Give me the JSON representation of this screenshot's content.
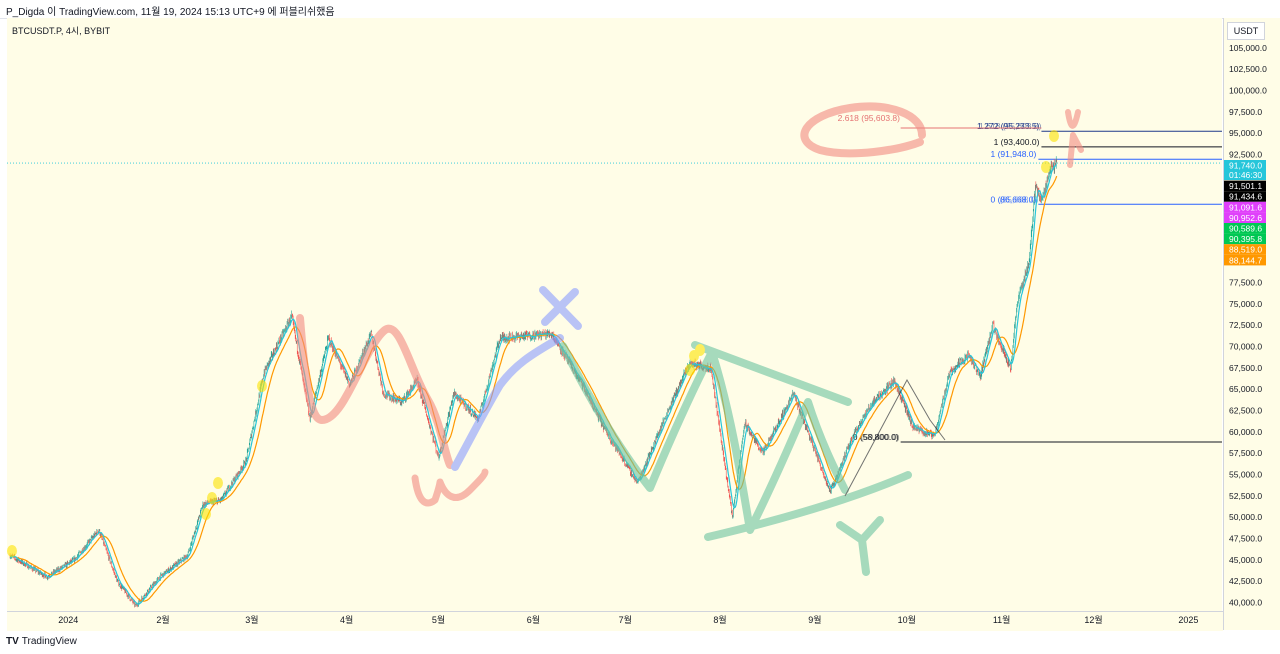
{
  "header": {
    "caption": "P_Digda 이 TradingView.com, 11월 19, 2024 15:13 UTC+9 에 퍼블리쉬했음"
  },
  "symbol_label": "BTCUSDT.P, 4시, BYBIT",
  "unit": "USDT",
  "branding": {
    "logo_glyph": "TV",
    "name": "TradingView"
  },
  "colors": {
    "background": "#fffde7",
    "up": "#26a69a",
    "down": "#ef5350",
    "ma_teal": "#26c6da",
    "ma_orange": "#ff9800",
    "drawing_red": "#f28b82",
    "drawing_blue": "#8c9eff",
    "drawing_green": "#6cc3a0",
    "marker_yellow": "#fde400"
  },
  "chart_data": {
    "type": "candlestick",
    "title": "",
    "y_ticks": [
      105000,
      102500,
      100000,
      97500,
      95000,
      92500,
      90000,
      87500,
      85000,
      82500,
      80000,
      77500,
      75000,
      72500,
      70000,
      67500,
      65000,
      62500,
      60000,
      57500,
      55000,
      52500,
      50000,
      47500,
      45000,
      42500,
      40000
    ],
    "y_tick_labels": [
      "105,000.0",
      "102,500.0",
      "100,000.0",
      "97,500.0",
      "95,000.0",
      "92,500.0",
      "90,000.0",
      "87,500.0",
      "85,000.0",
      "82,500.0",
      "80,000.0",
      "77,500.0",
      "75,000.0",
      "72,500.0",
      "70,000.0",
      "67,500.0",
      "65,000.0",
      "62,500.0",
      "60,000.0",
      "57,500.0",
      "55,000.0",
      "52,500.0",
      "50,000.0",
      "47,500.0",
      "45,000.0",
      "42,500.0",
      "40,000.0"
    ],
    "ylim": [
      39000,
      108500
    ],
    "x_ticks": [
      {
        "label": "2024",
        "date": "2024-01-01"
      },
      {
        "label": "2월",
        "date": "2024-02-01"
      },
      {
        "label": "3월",
        "date": "2024-03-01"
      },
      {
        "label": "4월",
        "date": "2024-04-01"
      },
      {
        "label": "5월",
        "date": "2024-05-01"
      },
      {
        "label": "6월",
        "date": "2024-06-01"
      },
      {
        "label": "7월",
        "date": "2024-07-01"
      },
      {
        "label": "8월",
        "date": "2024-08-01"
      },
      {
        "label": "9월",
        "date": "2024-09-01"
      },
      {
        "label": "10월",
        "date": "2024-10-01"
      },
      {
        "label": "11월",
        "date": "2024-11-01"
      },
      {
        "label": "12월",
        "date": "2024-12-01"
      },
      {
        "label": "2025",
        "date": "2025-01-01"
      }
    ],
    "xlim": [
      "2023-12-12",
      "2025-01-12"
    ],
    "price_path": [
      [
        "2023-12-13",
        45500
      ],
      [
        "2023-12-25",
        43000
      ],
      [
        "2024-01-03",
        45000
      ],
      [
        "2024-01-11",
        48500
      ],
      [
        "2024-01-17",
        42500
      ],
      [
        "2024-01-23",
        39600
      ],
      [
        "2024-01-31",
        43000
      ],
      [
        "2024-02-09",
        45500
      ],
      [
        "2024-02-14",
        51500
      ],
      [
        "2024-02-20",
        52000
      ],
      [
        "2024-02-28",
        56500
      ],
      [
        "2024-03-05",
        67000
      ],
      [
        "2024-03-14",
        73500
      ],
      [
        "2024-03-20",
        61500
      ],
      [
        "2024-03-26",
        71000
      ],
      [
        "2024-04-02",
        65500
      ],
      [
        "2024-04-09",
        71500
      ],
      [
        "2024-04-13",
        64500
      ],
      [
        "2024-04-19",
        63500
      ],
      [
        "2024-04-24",
        66000
      ],
      [
        "2024-05-01",
        57000
      ],
      [
        "2024-05-06",
        64500
      ],
      [
        "2024-05-14",
        61500
      ],
      [
        "2024-05-21",
        71000
      ],
      [
        "2024-06-07",
        71500
      ],
      [
        "2024-06-17",
        65500
      ],
      [
        "2024-06-24",
        60500
      ],
      [
        "2024-07-05",
        54000
      ],
      [
        "2024-07-15",
        62500
      ],
      [
        "2024-07-22",
        68000
      ],
      [
        "2024-07-29",
        67500
      ],
      [
        "2024-08-05",
        50000
      ],
      [
        "2024-08-09",
        61000
      ],
      [
        "2024-08-15",
        57500
      ],
      [
        "2024-08-25",
        64500
      ],
      [
        "2024-09-06",
        53000
      ],
      [
        "2024-09-14",
        60000
      ],
      [
        "2024-09-20",
        63500
      ],
      [
        "2024-09-27",
        66000
      ],
      [
        "2024-10-03",
        60500
      ],
      [
        "2024-10-10",
        59500
      ],
      [
        "2024-10-15",
        67000
      ],
      [
        "2024-10-21",
        69000
      ],
      [
        "2024-10-25",
        66500
      ],
      [
        "2024-10-29",
        72500
      ],
      [
        "2024-11-04",
        67500
      ],
      [
        "2024-11-06",
        75000
      ],
      [
        "2024-11-10",
        80000
      ],
      [
        "2024-11-12",
        89000
      ],
      [
        "2024-11-14",
        87000
      ],
      [
        "2024-11-17",
        91000
      ],
      [
        "2024-11-19",
        91501
      ]
    ],
    "price_badges": [
      {
        "value": 91740,
        "label": "91,740.0",
        "sublabel": "01:46:30",
        "color": "#26c6da",
        "text": "#ffffff"
      },
      {
        "value": 91501.1,
        "label": "91,501.1",
        "color": "#000000",
        "text": "#ffffff"
      },
      {
        "value": 91434.6,
        "label": "91,434.6",
        "color": "#000000",
        "text": "#ffffff"
      },
      {
        "value": 91091.6,
        "label": "91,091.6",
        "color": "#e040fb",
        "text": "#ffffff"
      },
      {
        "value": 90952.6,
        "label": "90,952.6",
        "color": "#e040fb",
        "text": "#ffffff"
      },
      {
        "value": 90589.6,
        "label": "90,589.6",
        "color": "#00c853",
        "text": "#ffffff"
      },
      {
        "value": 90395.8,
        "label": "90,395.8",
        "color": "#00c853",
        "text": "#ffffff"
      },
      {
        "value": 88519.0,
        "label": "88,519.0",
        "color": "#ff9800",
        "text": "#ffffff"
      },
      {
        "value": 88144.7,
        "label": "88,144.7",
        "color": "#ff9800",
        "text": "#ffffff"
      }
    ],
    "fib_levels": [
      {
        "label": "1.272 (95,233.5)",
        "overlap_label": "1.618 (95,603.8)",
        "value": 95233.5,
        "color": "#1e3a8a",
        "from": "2024-11-14",
        "to": "2025-01-12"
      },
      {
        "label": "1 (93,400.0)",
        "value": 93400,
        "color": "#131722",
        "from": "2024-11-14",
        "to": "2025-01-12"
      },
      {
        "label": "1 (91,948.0)",
        "value": 91948,
        "color": "#2962ff",
        "from": "2024-11-13",
        "to": "2025-01-12"
      },
      {
        "label": "0 (86,668.0)",
        "overlap_label": "(85,668.0)",
        "value": 86668,
        "color": "#2962ff",
        "from": "2024-11-13",
        "to": "2025-01-12"
      },
      {
        "label": "2.618 (95,603.8)",
        "value": 95603.8,
        "color": "#e57373",
        "from": "2024-09-29",
        "to": "2024-11-14"
      },
      {
        "label": "0 (58,800.0)",
        "overlap_label": "(59,400.0)",
        "value": 58800,
        "color": "#131722",
        "from": "2024-09-29",
        "to": "2025-01-12"
      }
    ],
    "annotations": [
      {
        "text": "W",
        "color": "red"
      },
      {
        "text": "X",
        "color": "blue"
      },
      {
        "text": "Y",
        "color": "green"
      }
    ]
  }
}
